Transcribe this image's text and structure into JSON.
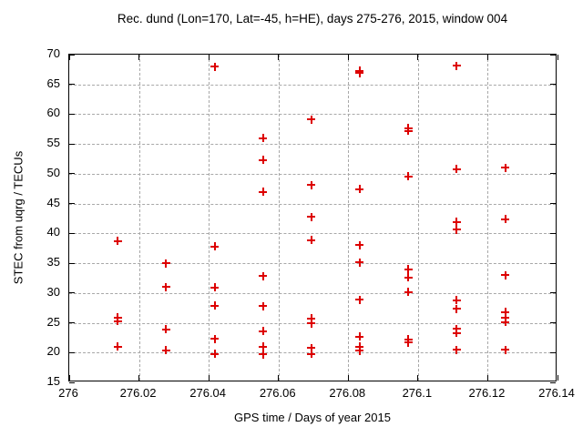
{
  "colors": {
    "background": "#ffffff",
    "text_color": "#000000",
    "axis_color": "#000000",
    "grid_color": "#a8a8a8",
    "marker_color": "#dd0000"
  },
  "chart_data": {
    "type": "scatter",
    "title": "Rec. dund (Lon=170, Lat=-45, h=HE), days 275-276, 2015, window 004",
    "xlabel": "GPS time / Days of year 2015",
    "ylabel": "STEC from uqrg / TECUs",
    "xlim": [
      276,
      276.14
    ],
    "ylim": [
      15,
      70
    ],
    "x_ticks": [
      276,
      276.02,
      276.04,
      276.06,
      276.08,
      276.1,
      276.12,
      276.14
    ],
    "x_tick_labels": [
      "276",
      "276.02",
      "276.04",
      "276.06",
      "276.08",
      "276.1",
      "276.12",
      "276.14"
    ],
    "y_ticks": [
      15,
      20,
      25,
      30,
      35,
      40,
      45,
      50,
      55,
      60,
      65,
      70
    ],
    "y_tick_labels": [
      "15",
      "20",
      "25",
      "30",
      "35",
      "40",
      "45",
      "50",
      "55",
      "60",
      "65",
      "70"
    ],
    "grid": true,
    "legend": "none",
    "marker": "plus",
    "points": [
      [
        276.0139,
        38.7
      ],
      [
        276.0139,
        25.9
      ],
      [
        276.0139,
        25.3
      ],
      [
        276.0139,
        21.0
      ],
      [
        276.0278,
        35.0
      ],
      [
        276.0278,
        31.0
      ],
      [
        276.0278,
        23.9
      ],
      [
        276.0278,
        20.4
      ],
      [
        276.0417,
        68.0
      ],
      [
        276.0417,
        37.8
      ],
      [
        276.0417,
        30.9
      ],
      [
        276.0417,
        27.9
      ],
      [
        276.0417,
        22.3
      ],
      [
        276.0417,
        19.8
      ],
      [
        276.0556,
        56.0
      ],
      [
        276.0556,
        52.3
      ],
      [
        276.0556,
        47.0
      ],
      [
        276.0556,
        32.8
      ],
      [
        276.0556,
        27.8
      ],
      [
        276.0556,
        23.6
      ],
      [
        276.0556,
        21.0
      ],
      [
        276.0556,
        19.7
      ],
      [
        276.0694,
        59.1
      ],
      [
        276.0694,
        48.1
      ],
      [
        276.0694,
        42.8
      ],
      [
        276.0694,
        38.9
      ],
      [
        276.0694,
        25.7
      ],
      [
        276.0694,
        24.9
      ],
      [
        276.0694,
        20.8
      ],
      [
        276.0694,
        19.8
      ],
      [
        276.0833,
        67.3
      ],
      [
        276.0833,
        66.9
      ],
      [
        276.0833,
        47.4
      ],
      [
        276.0833,
        38.0
      ],
      [
        276.0833,
        35.1
      ],
      [
        276.0833,
        28.9
      ],
      [
        276.0833,
        22.7
      ],
      [
        276.0833,
        21.0
      ],
      [
        276.0833,
        20.3
      ],
      [
        276.0972,
        57.7
      ],
      [
        276.0972,
        57.2
      ],
      [
        276.0972,
        49.6
      ],
      [
        276.0972,
        34.0
      ],
      [
        276.0972,
        32.6
      ],
      [
        276.0972,
        30.2
      ],
      [
        276.0972,
        22.2
      ],
      [
        276.0972,
        21.7
      ],
      [
        276.1111,
        68.1
      ],
      [
        276.1111,
        50.8
      ],
      [
        276.1111,
        41.9
      ],
      [
        276.1111,
        40.6
      ],
      [
        276.1111,
        28.8
      ],
      [
        276.1111,
        27.3
      ],
      [
        276.1111,
        24.0
      ],
      [
        276.1111,
        23.3
      ],
      [
        276.1111,
        20.5
      ],
      [
        276.125,
        51.0
      ],
      [
        276.125,
        42.4
      ],
      [
        276.125,
        33.0
      ],
      [
        276.125,
        26.8
      ],
      [
        276.125,
        25.8
      ],
      [
        276.125,
        25.1
      ],
      [
        276.125,
        20.5
      ]
    ]
  }
}
